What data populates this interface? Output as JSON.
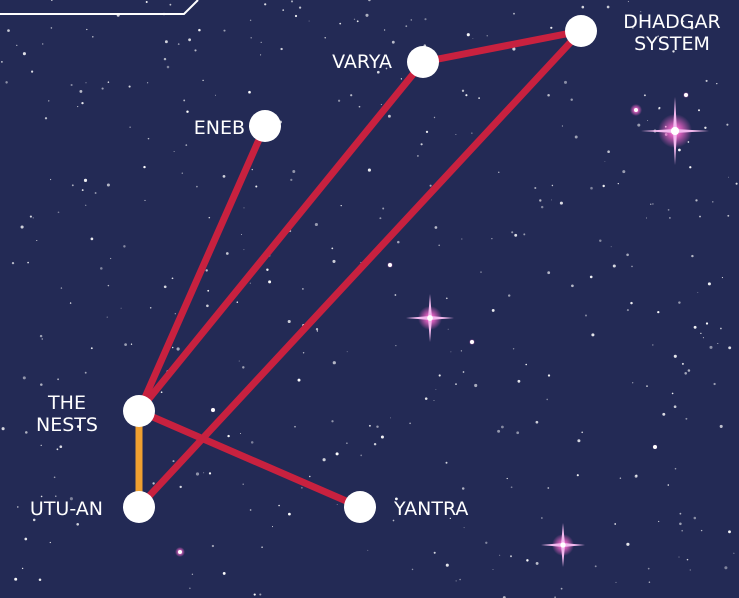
{
  "nodes": [
    {
      "label": [
        "DHADGAR",
        "SYSTEM"
      ]
    },
    {
      "label": [
        "VARYA"
      ]
    },
    {
      "label": [
        "ENEB"
      ]
    },
    {
      "label": [
        "THE",
        "NESTS"
      ]
    },
    {
      "label": [
        "UTU-AN"
      ]
    },
    {
      "label": [
        "YANTRA"
      ]
    }
  ]
}
